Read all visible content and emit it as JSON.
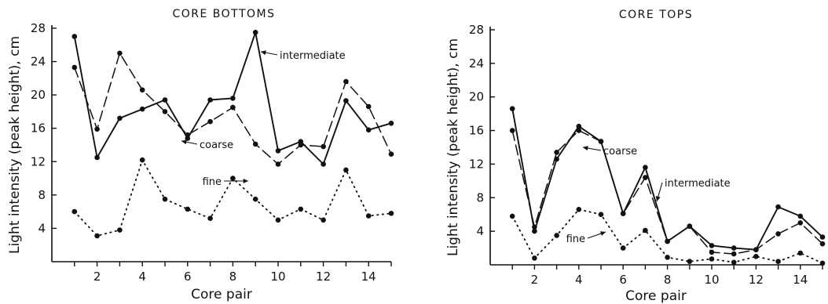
{
  "chart_data": [
    {
      "type": "line",
      "title": "CORE BOTTOMS",
      "xlabel": "Core pair",
      "ylabel": "Light intensity (peak height), cm",
      "xlim": [
        0,
        15
      ],
      "ylim": [
        0,
        28
      ],
      "xticks": [
        2,
        4,
        6,
        8,
        10,
        12,
        14
      ],
      "yticks": [
        4,
        8,
        12,
        16,
        20,
        24,
        28
      ],
      "x": [
        1,
        2,
        3,
        4,
        5,
        6,
        7,
        8,
        9,
        10,
        11,
        12,
        13,
        14,
        15
      ],
      "series": [
        {
          "name": "intermediate",
          "style": "solid",
          "values": [
            27.0,
            12.5,
            17.2,
            18.3,
            19.4,
            14.8,
            19.4,
            19.6,
            27.5,
            13.3,
            14.4,
            11.7,
            19.3,
            15.8,
            16.6
          ]
        },
        {
          "name": "coarse",
          "style": "dashed",
          "values": [
            23.3,
            15.9,
            25.0,
            20.6,
            18.0,
            15.2,
            16.8,
            18.5,
            14.1,
            11.7,
            14.0,
            13.8,
            21.6,
            18.6,
            12.9
          ]
        },
        {
          "name": "fine",
          "style": "dotted",
          "values": [
            6.0,
            3.1,
            3.8,
            12.2,
            7.5,
            6.3,
            5.2,
            10.0,
            7.5,
            5.0,
            6.3,
            5.0,
            11.0,
            5.5,
            5.8
          ]
        }
      ],
      "annotations": [
        {
          "text": "intermediate",
          "series": "intermediate",
          "at_x": 9
        },
        {
          "text": "coarse",
          "series": "coarse",
          "at_x": 6.5
        },
        {
          "text": "fine",
          "series": "fine",
          "at_x": 8
        }
      ]
    },
    {
      "type": "line",
      "title": "CORE TOPS",
      "xlabel": "Core pair",
      "ylabel": "Light intensity (peak height), cm",
      "xlim": [
        0,
        15
      ],
      "ylim": [
        0,
        28
      ],
      "xticks": [
        2,
        4,
        6,
        8,
        10,
        12,
        14
      ],
      "yticks": [
        4,
        8,
        12,
        16,
        20,
        24,
        28
      ],
      "x": [
        1,
        2,
        3,
        4,
        5,
        6,
        7,
        8,
        9,
        10,
        11,
        12,
        13,
        14,
        15
      ],
      "series": [
        {
          "name": "intermediate",
          "style": "solid",
          "values": [
            18.6,
            4.0,
            12.6,
            16.5,
            14.7,
            6.1,
            11.6,
            2.8,
            4.6,
            2.3,
            2.0,
            1.8,
            6.9,
            5.8,
            3.3
          ]
        },
        {
          "name": "coarse",
          "style": "dashed",
          "values": [
            16.0,
            4.5,
            13.4,
            16.0,
            14.7,
            6.1,
            10.4,
            2.8,
            4.6,
            1.5,
            1.3,
            1.8,
            3.7,
            5.0,
            2.5
          ]
        },
        {
          "name": "fine",
          "style": "dotted",
          "values": [
            5.8,
            0.8,
            3.5,
            6.6,
            6.0,
            2.0,
            4.1,
            0.9,
            0.4,
            0.7,
            0.3,
            1.0,
            0.4,
            1.4,
            0.2
          ]
        }
      ],
      "annotations": [
        {
          "text": "coarse",
          "series": "coarse",
          "at_x": 5
        },
        {
          "text": "intermediate",
          "series": "intermediate",
          "at_x": 7
        },
        {
          "text": "fine",
          "series": "fine",
          "at_x": 4
        }
      ]
    }
  ]
}
